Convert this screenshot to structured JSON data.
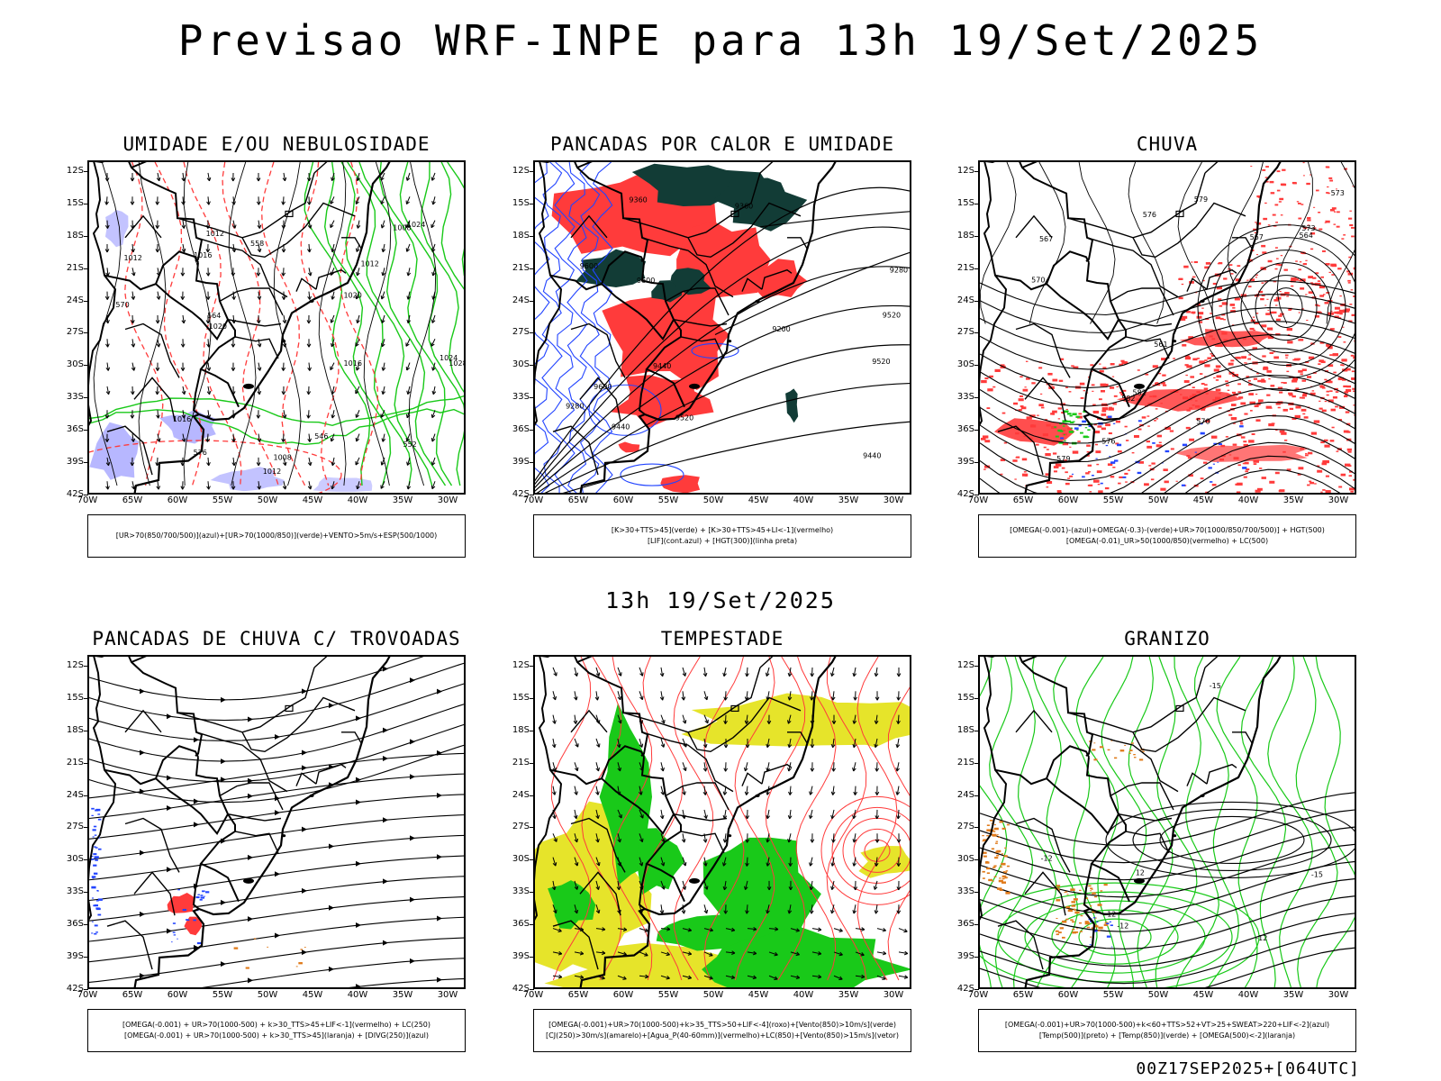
{
  "title": "Previsao WRF-INPE  para 13h 19/Set/2025",
  "subtitle": "13h 19/Set/2025",
  "footer": "00Z17SEP2025+[064UTC]",
  "lat_labels": [
    "12S",
    "15S",
    "18S",
    "21S",
    "24S",
    "27S",
    "30S",
    "33S",
    "36S",
    "39S",
    "42S"
  ],
  "lon_labels": [
    "70W",
    "65W",
    "60W",
    "55W",
    "50W",
    "45W",
    "40W",
    "35W",
    "30W"
  ],
  "colors": {
    "red": "#ff3b3b",
    "green": "#19c919",
    "blue": "#2244ff",
    "lavender": "#aaaaff",
    "darkgreen": "#123c36",
    "yellow": "#e6e42a",
    "orange": "#e07a1a"
  },
  "panels": [
    {
      "id": "umidade",
      "title": "UMIDADE E/OU NEBULOSIDADE",
      "legend": [
        "[UR>70(850/700/500)](azul)+[UR>70(1000/850)](verde)+VENTO>5m/s+ESP(500/1000)"
      ],
      "contour_labels": [
        "1012",
        "1016",
        "1020",
        "1008",
        "1008",
        "1012",
        "1016",
        "1020",
        "1024",
        "1028",
        "1024",
        "1012",
        "1012",
        "1016",
        "570",
        "576",
        "564",
        "558",
        "552",
        "546"
      ]
    },
    {
      "id": "pancadas-calor",
      "title": "PANCADAS POR CALOR E UMIDADE",
      "legend": [
        "[K>30+TTS>45](verde) + [K>30+TTS>45+LI<-1](vermelho)",
        "[LIF](cont.azul) + [HGT(300)](linha preta)"
      ],
      "contour_labels": [
        "9600",
        "9600",
        "9600",
        "9520",
        "9520",
        "9520",
        "9440",
        "9440",
        "9440",
        "9360",
        "9360",
        "9280",
        "9200",
        "9280"
      ]
    },
    {
      "id": "chuva",
      "title": "CHUVA",
      "legend": [
        "[OMEGA(-0.001)-(azul)+OMEGA(-0.3)-(verde)+UR>70(1000/850/700/500)] + HGT(500)",
        "[OMEGA(-0.01)_UR>50(1000/850)(vermelho) + LC(500)"
      ],
      "contour_labels": [
        "582",
        "582",
        "579",
        "579",
        "576",
        "576",
        "573",
        "573",
        "570",
        "570",
        "567",
        "567",
        "564",
        "561"
      ]
    },
    {
      "id": "trovoadas",
      "title": "PANCADAS DE CHUVA C/ TROVOADAS",
      "legend": [
        "[OMEGA(-0.001) + UR>70(1000-500) + k>30_TTS>45+LIF<-1](vermelho) + LC(250)",
        "[OMEGA(-0.001) + UR>70(1000-500) + k>30_TTS>45](laranja) + [DIVG(250)](azul)"
      ],
      "contour_labels": []
    },
    {
      "id": "tempestade",
      "title": "TEMPESTADE",
      "legend": [
        "[OMEGA(-0.001)+UR>70(1000-500)+k>35_TTS>50+LIF<-4](roxo)+[Vento(850)>10m/s](verde)",
        "[CJ(250)>30m/s](amarelo)+[Agua_P(40-60mm)](vermelho)+LC(850)+[Vento(850)>15m/s](vetor)"
      ],
      "contour_labels": []
    },
    {
      "id": "granizo",
      "title": "GRANIZO",
      "legend": [
        "[OMEGA(-0.001)+UR>70(1000-500)+k<60+TTS>52+VT>25+SWEAT>220+LIF<-2](azul)",
        "[Temp(500)](preto) + [Temp(850)](verde) + [OMEGA(500)<-2](laranja)"
      ],
      "contour_labels": [
        "-12",
        "-12",
        "-12",
        "-15",
        "-15",
        "12",
        "12"
      ]
    }
  ]
}
